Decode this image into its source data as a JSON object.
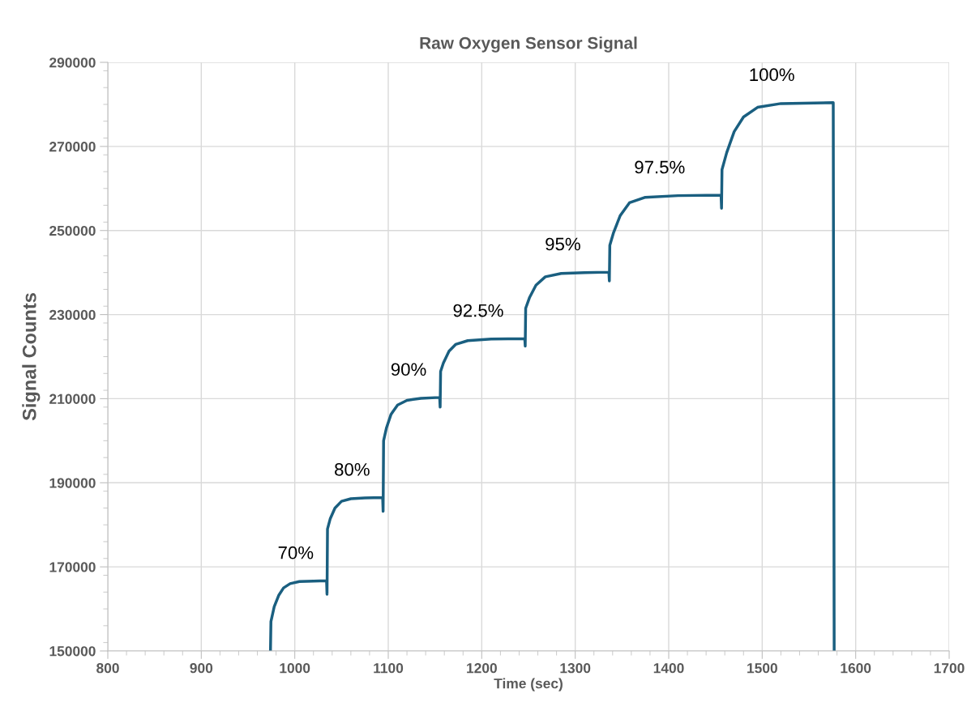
{
  "chart_data": {
    "type": "line",
    "title": "Raw Oxygen Sensor Signal",
    "xlabel": "Time (sec)",
    "ylabel": "Signal Counts",
    "xlim": [
      800,
      1700
    ],
    "xticks": [
      800,
      900,
      1000,
      1100,
      1200,
      1300,
      1400,
      1500,
      1600,
      1700
    ],
    "ylim": [
      150000,
      290000
    ],
    "yticks": [
      150000,
      170000,
      190000,
      210000,
      230000,
      250000,
      270000,
      290000
    ],
    "grid": true,
    "marker": "none",
    "line_style": "solid",
    "series": [
      {
        "color": "#1a5f80",
        "x": [
          974,
          974.5,
          978,
          983,
          988,
          995,
          1005,
          1020,
          1034,
          1034.5,
          1035,
          1038,
          1043,
          1050,
          1060,
          1075,
          1094,
          1094.5,
          1095,
          1098,
          1103,
          1110,
          1120,
          1135,
          1155,
          1155.5,
          1156,
          1159,
          1165,
          1172,
          1185,
          1210,
          1246,
          1246.5,
          1247,
          1251,
          1258,
          1268,
          1285,
          1310,
          1336,
          1336.5,
          1337,
          1341,
          1348,
          1358,
          1375,
          1410,
          1456,
          1456.5,
          1457,
          1462,
          1470,
          1480,
          1495,
          1520,
          1576,
          1577
        ],
        "values": [
          150000,
          157000,
          160500,
          163300,
          165000,
          166000,
          166500,
          166600,
          166700,
          163500,
          179000,
          181500,
          184000,
          185600,
          186200,
          186400,
          186500,
          183200,
          200000,
          203000,
          206300,
          208500,
          209600,
          210100,
          210300,
          208000,
          216500,
          218500,
          221300,
          222900,
          223800,
          224200,
          224300,
          222500,
          231500,
          234000,
          237000,
          239000,
          239800,
          240000,
          240100,
          238000,
          246500,
          249500,
          253500,
          256600,
          257900,
          258300,
          258400,
          255300,
          264500,
          268500,
          273500,
          277000,
          279300,
          280200,
          280400,
          150000
        ]
      }
    ],
    "annotations": [
      "70%",
      "80%",
      "90%",
      "92.5%",
      "95%",
      "97.5%",
      "100%"
    ]
  }
}
